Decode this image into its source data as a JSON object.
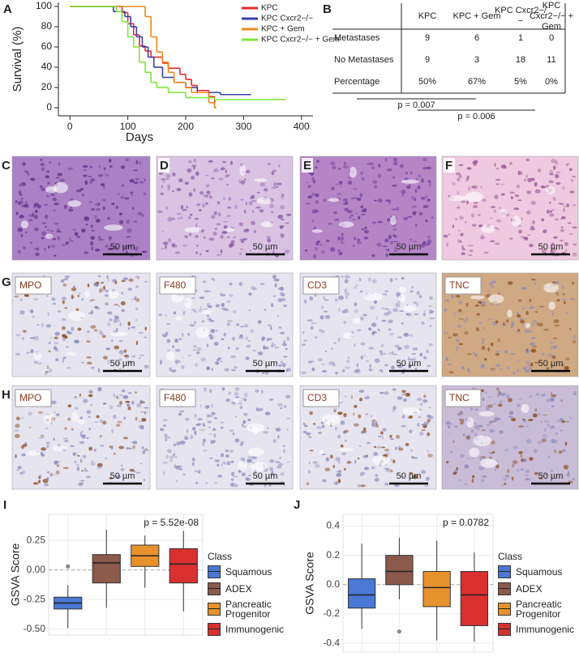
{
  "chart_data": [
    {
      "type": "survival",
      "panel": "A",
      "ylabel": "Survival (%)",
      "xlabel": "Days",
      "xlim": [
        -20,
        420
      ],
      "ylim": [
        -8,
        104
      ],
      "xticks": [
        0,
        100,
        200,
        300,
        400
      ],
      "yticks": [
        0,
        20,
        40,
        60,
        80,
        100
      ],
      "series": [
        {
          "name": "KPC",
          "color": "#e8282b",
          "x": [
            0,
            90,
            100,
            110,
            120,
            130,
            140,
            150,
            160,
            170,
            190,
            200,
            210,
            220,
            240,
            250
          ],
          "values": [
            100,
            94,
            83,
            72,
            61,
            56,
            50,
            50,
            44,
            39,
            33,
            28,
            22,
            17,
            11,
            0
          ]
        },
        {
          "name": "KPC Cxcr2−/−",
          "color": "#3b3fa8",
          "x": [
            0,
            75,
            95,
            105,
            115,
            125,
            135,
            145,
            160,
            180,
            200,
            220,
            260,
            310
          ],
          "values": [
            100,
            95,
            90,
            80,
            70,
            60,
            50,
            40,
            30,
            25,
            20,
            15,
            13,
            13
          ]
        },
        {
          "name": "KPC + Gem",
          "color": "#ef8a1c",
          "x": [
            0,
            120,
            130,
            140,
            150,
            160,
            170,
            180,
            200,
            210,
            240,
            250
          ],
          "values": [
            100,
            100,
            90,
            70,
            55,
            45,
            35,
            25,
            20,
            15,
            5,
            0
          ]
        },
        {
          "name": "KPC Cxcr2−/− + Gem",
          "color": "#7ee83a",
          "x": [
            0,
            80,
            90,
            100,
            110,
            120,
            130,
            140,
            150,
            170,
            200,
            250,
            370
          ],
          "values": [
            100,
            95,
            85,
            70,
            60,
            45,
            35,
            25,
            20,
            15,
            10,
            8,
            8
          ]
        }
      ]
    },
    {
      "type": "box",
      "panel": "I",
      "title": "p = 5.52e-08",
      "ylabel": "GSVA Score",
      "legend_title": "Class",
      "ylim": [
        -0.55,
        0.47
      ],
      "hline": 0,
      "yticks": [
        0.25,
        {
          "value": 0,
          "label": "0.00"
        },
        -0.25,
        {
          "value": -0.5,
          "label": "-0.50"
        }
      ],
      "boxes": [
        {
          "name": "Squamous",
          "color": "#4a78d4",
          "min": -0.49,
          "q1": -0.33,
          "median": -0.28,
          "q3": -0.23,
          "max": -0.13,
          "outliers": [
            0.03
          ]
        },
        {
          "name": "ADEX",
          "color": "#8b5a4a",
          "min": -0.32,
          "q1": -0.11,
          "median": 0.06,
          "q3": 0.13,
          "max": 0.34,
          "outliers": []
        },
        {
          "name": "Pancreatic Progenitor",
          "color": "#e8922e",
          "min": -0.15,
          "q1": 0.03,
          "median": 0.12,
          "q3": 0.21,
          "max": 0.29,
          "outliers": []
        },
        {
          "name": "Immunogenic",
          "color": "#d93030",
          "min": -0.35,
          "q1": -0.11,
          "median": 0.05,
          "q3": 0.18,
          "max": 0.33,
          "outliers": []
        }
      ]
    },
    {
      "type": "box",
      "panel": "J",
      "title": "p = 0.0782",
      "ylabel": "GSVA Score",
      "legend_title": "Class",
      "ylim": [
        -0.46,
        0.48
      ],
      "hline": 0,
      "yticks": [
        0.4,
        0.2,
        {
          "value": 0,
          "label": "0.0"
        },
        -0.2,
        -0.4
      ],
      "boxes": [
        {
          "name": "Squamous",
          "color": "#4a78d4",
          "min": -0.3,
          "q1": -0.16,
          "median": -0.07,
          "q3": 0.04,
          "max": 0.28,
          "outliers": []
        },
        {
          "name": "ADEX",
          "color": "#8b5a4a",
          "min": -0.1,
          "q1": 0.0,
          "median": 0.09,
          "q3": 0.2,
          "max": 0.32,
          "outliers": [
            -0.32
          ]
        },
        {
          "name": "Pancreatic Progenitor",
          "color": "#e8922e",
          "min": -0.38,
          "q1": -0.15,
          "median": -0.02,
          "q3": 0.09,
          "max": 0.3,
          "outliers": []
        },
        {
          "name": "Immunogenic",
          "color": "#d93030",
          "min": -0.39,
          "q1": -0.28,
          "median": -0.07,
          "q3": 0.09,
          "max": 0.22,
          "outliers": []
        }
      ]
    }
  ],
  "table": {
    "panel": "B",
    "columns": [
      "KPC",
      "KPC + Gem",
      "KPC Cxcr2−/−",
      "KPC Cxcr2−/− + Gem"
    ],
    "rows": [
      {
        "label": "Metastases",
        "cells": [
          9,
          6,
          1,
          0
        ]
      },
      {
        "label": "No Metastases",
        "cells": [
          9,
          3,
          18,
          11
        ]
      },
      {
        "label": "Percentage",
        "cells": [
          "50%",
          "67%",
          "5%",
          "0%"
        ]
      }
    ],
    "p_values": [
      "p = 0.007",
      "p = 0.006"
    ]
  },
  "histology": {
    "he_panels": [
      "C",
      "D",
      "E",
      "F"
    ],
    "ihc_rows": [
      {
        "panel": "G",
        "stains": [
          "MPO",
          "F480",
          "CD3",
          "TNC"
        ]
      },
      {
        "panel": "H",
        "stains": [
          "MPO",
          "F480",
          "CD3",
          "TNC"
        ]
      }
    ],
    "scale_bar": "50 µm"
  }
}
